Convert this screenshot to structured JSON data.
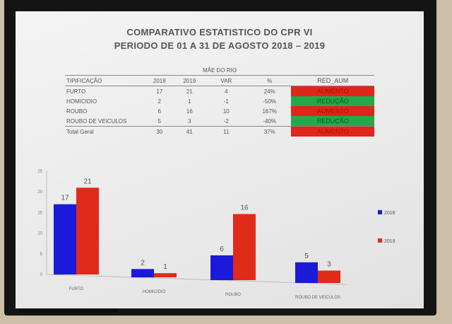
{
  "title_line1": "COMPARATIVO ESTATISTICO DO CPR VI",
  "title_line2": "PERIODO DE 01 A 31 DE AGOSTO 2018 – 2019",
  "table": {
    "group": "MÃE DO RIO",
    "headers": [
      "TIPIFICAÇÃO",
      "2018",
      "2019",
      "VAR",
      "%",
      "RED_AUM"
    ],
    "rows": [
      [
        "FURTO",
        "17",
        "21",
        "4",
        "24%",
        "AUMENTO"
      ],
      [
        "HOMICIDIO",
        "2",
        "1",
        "-1",
        "-50%",
        "REDUÇÃO"
      ],
      [
        "ROUBO",
        "6",
        "16",
        "10",
        "167%",
        "AUMENTO"
      ],
      [
        "ROUBO DE VEICULOS",
        "5",
        "3",
        "-2",
        "-40%",
        "REDUÇÃO"
      ]
    ],
    "total": [
      "Total Geral",
      "30",
      "41",
      "11",
      "37%",
      "AUMENTO"
    ]
  },
  "colors": {
    "aumento": "#e0251a",
    "reducao": "#25a84a",
    "s2018": "#1a1ad8",
    "s2019": "#e02a1a"
  },
  "chart_data": {
    "type": "bar",
    "categories": [
      "FURTO",
      "HOMICIDIO",
      "ROUBO",
      "ROUBO DE VEICULOS"
    ],
    "series": [
      {
        "name": "2018",
        "values": [
          17,
          2,
          6,
          5
        ]
      },
      {
        "name": "2019",
        "values": [
          21,
          1,
          16,
          3
        ]
      }
    ],
    "ylim": [
      0,
      25
    ],
    "yticks": [
      "0",
      "5",
      "10",
      "15",
      "20",
      "25"
    ],
    "legend": "right",
    "grid": false
  }
}
